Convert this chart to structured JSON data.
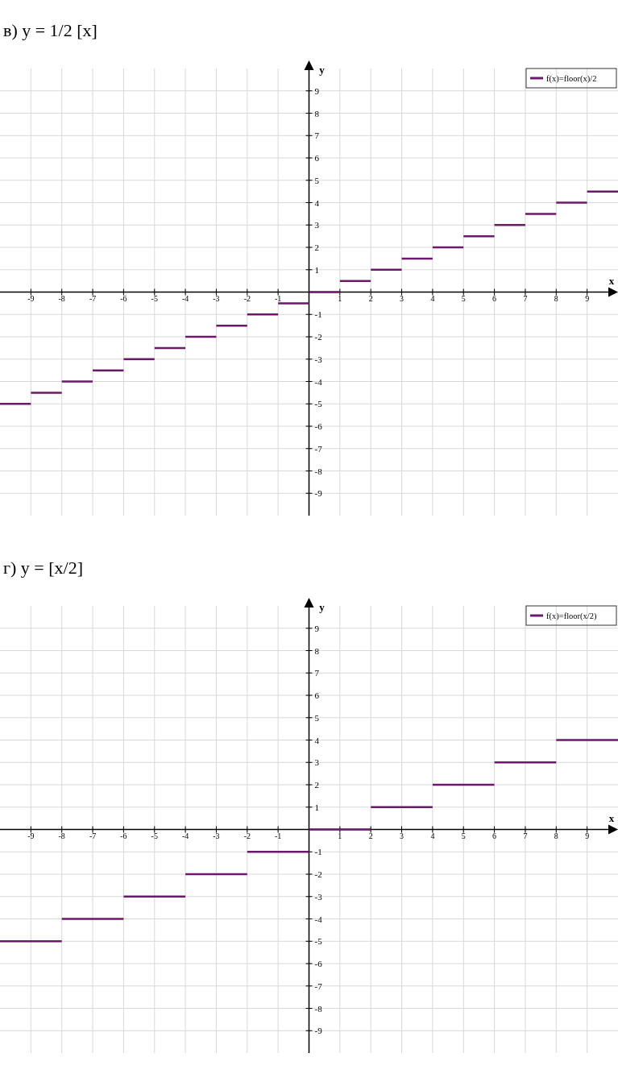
{
  "chart_data": [
    {
      "type": "line",
      "title": "в) y = 1/2 [x]",
      "xlabel": "x",
      "ylabel": "y",
      "xlim": [
        -10,
        10
      ],
      "ylim": [
        -10,
        10
      ],
      "xticks": [
        -9,
        -8,
        -7,
        -6,
        -5,
        -4,
        -3,
        -2,
        -1,
        1,
        2,
        3,
        4,
        5,
        6,
        7,
        8,
        9
      ],
      "yticks": [
        -9,
        -8,
        -7,
        -6,
        -5,
        -4,
        -3,
        -2,
        -1,
        1,
        2,
        3,
        4,
        5,
        6,
        7,
        8,
        9
      ],
      "grid": true,
      "legend": "top right",
      "marker": "none",
      "series": [
        {
          "name": "f(x)=floor(x)/2",
          "color": "#6b1a6b",
          "x": [
            -10,
            -9,
            -9,
            -8,
            -8,
            -7,
            -7,
            -6,
            -6,
            -5,
            -5,
            -4,
            -4,
            -3,
            -3,
            -2,
            -2,
            -1,
            -1,
            0,
            0,
            1,
            1,
            2,
            2,
            3,
            3,
            4,
            4,
            5,
            5,
            6,
            6,
            7,
            7,
            8,
            8,
            9,
            9,
            10
          ],
          "values": [
            -5,
            -5,
            -4.5,
            -4.5,
            -4,
            -4,
            -3.5,
            -3.5,
            -3,
            -3,
            -2.5,
            -2.5,
            -2,
            -2,
            -1.5,
            -1.5,
            -1,
            -1,
            -0.5,
            -0.5,
            0,
            0,
            0.5,
            0.5,
            1,
            1,
            1.5,
            1.5,
            2,
            2,
            2.5,
            2.5,
            3,
            3,
            3.5,
            3.5,
            4,
            4,
            4.5,
            4.5
          ]
        }
      ]
    },
    {
      "type": "line",
      "title": "г) y = [x/2]",
      "xlabel": "x",
      "ylabel": "y",
      "xlim": [
        -10,
        10
      ],
      "ylim": [
        -10,
        10
      ],
      "xticks": [
        -9,
        -8,
        -7,
        -6,
        -5,
        -4,
        -3,
        -2,
        -1,
        1,
        2,
        3,
        4,
        5,
        6,
        7,
        8,
        9
      ],
      "yticks": [
        -9,
        -8,
        -7,
        -6,
        -5,
        -4,
        -3,
        -2,
        -1,
        1,
        2,
        3,
        4,
        5,
        6,
        7,
        8,
        9
      ],
      "grid": true,
      "legend": "top right",
      "marker": "none",
      "series": [
        {
          "name": "f(x)=floor(x/2)",
          "color": "#6b1a6b",
          "x": [
            -10,
            -8,
            -8,
            -6,
            -6,
            -4,
            -4,
            -2,
            -2,
            0,
            0,
            2,
            2,
            4,
            4,
            6,
            6,
            8,
            8,
            10
          ],
          "values": [
            -5,
            -5,
            -4,
            -4,
            -3,
            -3,
            -2,
            -2,
            -1,
            -1,
            0,
            0,
            1,
            1,
            2,
            2,
            3,
            3,
            4,
            4
          ]
        }
      ]
    }
  ]
}
